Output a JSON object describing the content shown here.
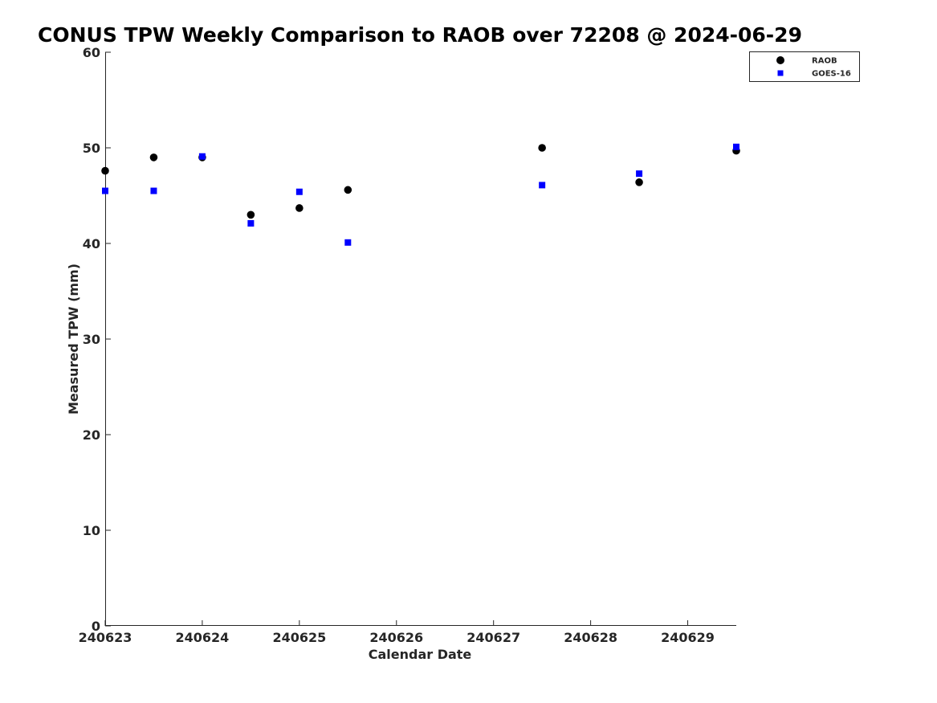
{
  "chart_data": {
    "type": "scatter",
    "title": "CONUS TPW Weekly Comparison to RAOB over 72208 @ 2024-06-29",
    "xlabel": "Calendar Date",
    "ylabel": "Measured TPW (mm)",
    "xlim": [
      "2024-06-23T00:00",
      "2024-06-29T12:00"
    ],
    "ylim": [
      0,
      60
    ],
    "x_ticks": [
      {
        "x": "2024-06-23T00:00",
        "label": "240623"
      },
      {
        "x": "2024-06-24T00:00",
        "label": "240624"
      },
      {
        "x": "2024-06-25T00:00",
        "label": "240625"
      },
      {
        "x": "2024-06-26T00:00",
        "label": "240626"
      },
      {
        "x": "2024-06-27T00:00",
        "label": "240627"
      },
      {
        "x": "2024-06-28T00:00",
        "label": "240628"
      },
      {
        "x": "2024-06-29T00:00",
        "label": "240629"
      }
    ],
    "y_ticks": [
      0,
      10,
      20,
      30,
      40,
      50,
      60
    ],
    "grid": false,
    "legend_position": "top-right",
    "series": [
      {
        "name": "RAOB",
        "marker": "circle",
        "color": "#000000",
        "points": [
          {
            "x": "2024-06-23T00:00",
            "y": 47.6
          },
          {
            "x": "2024-06-23T12:00",
            "y": 49.0
          },
          {
            "x": "2024-06-24T00:00",
            "y": 49.0
          },
          {
            "x": "2024-06-24T12:00",
            "y": 43.0
          },
          {
            "x": "2024-06-25T00:00",
            "y": 43.7
          },
          {
            "x": "2024-06-25T12:00",
            "y": 45.6
          },
          {
            "x": "2024-06-27T12:00",
            "y": 50.0
          },
          {
            "x": "2024-06-28T12:00",
            "y": 46.4
          },
          {
            "x": "2024-06-29T12:00",
            "y": 49.7
          }
        ]
      },
      {
        "name": "GOES-16",
        "marker": "square",
        "color": "#0000ff",
        "points": [
          {
            "x": "2024-06-23T00:00",
            "y": 45.5
          },
          {
            "x": "2024-06-23T12:00",
            "y": 45.5
          },
          {
            "x": "2024-06-24T00:00",
            "y": 49.1
          },
          {
            "x": "2024-06-24T12:00",
            "y": 42.1
          },
          {
            "x": "2024-06-25T00:00",
            "y": 45.4
          },
          {
            "x": "2024-06-25T12:00",
            "y": 40.1
          },
          {
            "x": "2024-06-27T12:00",
            "y": 46.1
          },
          {
            "x": "2024-06-28T12:00",
            "y": 47.3
          },
          {
            "x": "2024-06-29T12:00",
            "y": 50.1
          }
        ]
      }
    ]
  }
}
